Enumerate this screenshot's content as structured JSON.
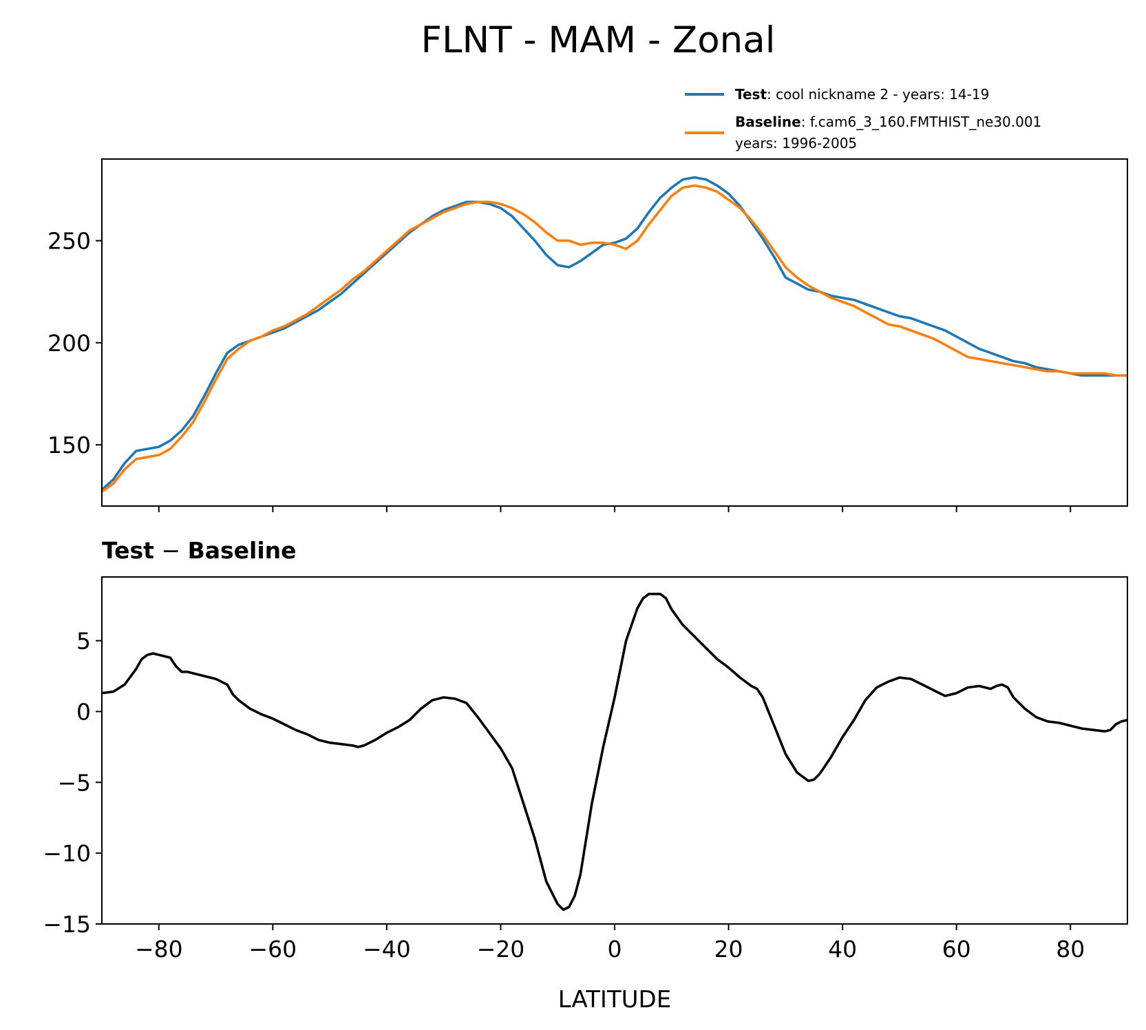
{
  "figure": {
    "title": "FLNT - MAM - Zonal",
    "xlabel": "LATITUDE"
  },
  "legend": {
    "test_label": "Test",
    "test_text": ": cool nickname 2 - years: 14-19",
    "baseline_label": "Baseline",
    "baseline_text": ": f.cam6_3_160.FMTHIST_ne30.001",
    "baseline_years": "years: 1996-2005"
  },
  "diff_title": {
    "left": "Test",
    "sep": " − ",
    "right": "Baseline"
  },
  "colors": {
    "test": "#1f77b4",
    "baseline": "#ff7f0e",
    "diff": "#000000"
  },
  "chart_data": [
    {
      "type": "line",
      "panel": "top",
      "xlim": [
        -90,
        90
      ],
      "ylim": [
        120,
        290
      ],
      "yticks": [
        150,
        200,
        250
      ],
      "ytick_labels": [
        "150",
        "200",
        "250"
      ],
      "xticks": [
        -80,
        -60,
        -40,
        -20,
        0,
        20,
        40,
        60,
        80
      ],
      "series": [
        {
          "name": "Test",
          "x": [
            -90,
            -88,
            -86,
            -84,
            -82,
            -80,
            -78,
            -76,
            -74,
            -72,
            -70,
            -68,
            -66,
            -64,
            -62,
            -60,
            -58,
            -56,
            -54,
            -52,
            -50,
            -48,
            -46,
            -44,
            -42,
            -40,
            -38,
            -36,
            -34,
            -32,
            -30,
            -28,
            -26,
            -24,
            -22,
            -20,
            -18,
            -16,
            -14,
            -12,
            -10,
            -8,
            -6,
            -4,
            -2,
            0,
            2,
            4,
            6,
            8,
            10,
            12,
            14,
            16,
            18,
            20,
            22,
            24,
            26,
            28,
            30,
            32,
            34,
            36,
            38,
            40,
            42,
            44,
            46,
            48,
            50,
            52,
            54,
            56,
            58,
            60,
            62,
            64,
            66,
            68,
            70,
            72,
            74,
            76,
            78,
            80,
            82,
            84,
            86,
            88,
            90
          ],
          "values": [
            128,
            133,
            141,
            147,
            148,
            149,
            152,
            157,
            164,
            174,
            185,
            195,
            199,
            201,
            203,
            205,
            207,
            210,
            213,
            216,
            220,
            224,
            229,
            234,
            239,
            244,
            249,
            254,
            258,
            262,
            265,
            267,
            269,
            269,
            268,
            266,
            262,
            256,
            250,
            243,
            238,
            237,
            240,
            244,
            248,
            249,
            251,
            256,
            264,
            271,
            276,
            280,
            281,
            280,
            277,
            273,
            267,
            259,
            251,
            242,
            232,
            229,
            226,
            225,
            223,
            222,
            221,
            219,
            217,
            215,
            213,
            212,
            210,
            208,
            206,
            203,
            200,
            197,
            195,
            193,
            191,
            190,
            188,
            187,
            186,
            185,
            184,
            184,
            184,
            184,
            184
          ]
        },
        {
          "name": "Baseline",
          "x": [
            -90,
            -88,
            -86,
            -84,
            -82,
            -80,
            -78,
            -76,
            -74,
            -72,
            -70,
            -68,
            -66,
            -64,
            -62,
            -60,
            -58,
            -56,
            -54,
            -52,
            -50,
            -48,
            -46,
            -44,
            -42,
            -40,
            -38,
            -36,
            -34,
            -32,
            -30,
            -28,
            -26,
            -24,
            -22,
            -20,
            -18,
            -16,
            -14,
            -12,
            -10,
            -8,
            -6,
            -4,
            -2,
            0,
            2,
            4,
            6,
            8,
            10,
            12,
            14,
            16,
            18,
            20,
            22,
            24,
            26,
            28,
            30,
            32,
            34,
            36,
            38,
            40,
            42,
            44,
            46,
            48,
            50,
            52,
            54,
            56,
            58,
            60,
            62,
            64,
            66,
            68,
            70,
            72,
            74,
            76,
            78,
            80,
            82,
            84,
            86,
            88,
            90
          ],
          "values": [
            127,
            131,
            138,
            143,
            144,
            145,
            148,
            154,
            161,
            171,
            182,
            192,
            197,
            201,
            203,
            206,
            208,
            211,
            214,
            218,
            222,
            226,
            231,
            235,
            240,
            245,
            250,
            255,
            258,
            261,
            264,
            266,
            268,
            269,
            269,
            268,
            266,
            263,
            259,
            254,
            250,
            250,
            248,
            249,
            249,
            248,
            246,
            250,
            258,
            265,
            272,
            276,
            277,
            276,
            274,
            270,
            266,
            260,
            253,
            245,
            237,
            232,
            228,
            225,
            222,
            220,
            218,
            215,
            212,
            209,
            208,
            206,
            204,
            202,
            199,
            196,
            193,
            192,
            191,
            190,
            189,
            188,
            187,
            186,
            186,
            185,
            185,
            185,
            185,
            184,
            184
          ]
        }
      ]
    },
    {
      "type": "line",
      "panel": "bottom",
      "title": "Test − Baseline",
      "xlabel": "LATITUDE",
      "xlim": [
        -90,
        90
      ],
      "ylim": [
        -15,
        9.5
      ],
      "yticks": [
        -15,
        -10,
        -5,
        0,
        5
      ],
      "ytick_labels": [
        "−15",
        "−10",
        "−5",
        "0",
        "5"
      ],
      "xticks": [
        -80,
        -60,
        -40,
        -20,
        0,
        20,
        40,
        60,
        80
      ],
      "xtick_labels": [
        "−80",
        "−60",
        "−40",
        "−20",
        "0",
        "20",
        "40",
        "60",
        "80"
      ],
      "series": [
        {
          "name": "Test − Baseline",
          "x": [
            -90,
            -88,
            -86,
            -84,
            -83,
            -82,
            -81,
            -80,
            -78,
            -77,
            -76,
            -75,
            -74,
            -73,
            -72,
            -70,
            -68,
            -67,
            -66,
            -64,
            -62,
            -60,
            -58,
            -56,
            -54,
            -52,
            -50,
            -48,
            -46,
            -45,
            -44,
            -42,
            -40,
            -38,
            -36,
            -34,
            -32,
            -30,
            -28,
            -26,
            -24,
            -22,
            -20,
            -18,
            -16,
            -14,
            -12,
            -10,
            -9,
            -8,
            -7,
            -6,
            -5,
            -4,
            -2,
            0,
            2,
            4,
            5,
            6,
            7,
            8,
            9,
            10,
            12,
            14,
            16,
            18,
            20,
            22,
            24,
            25,
            26,
            27,
            28,
            30,
            32,
            34,
            35,
            36,
            37,
            38,
            40,
            42,
            44,
            46,
            48,
            50,
            52,
            53,
            54,
            56,
            58,
            60,
            61,
            62,
            64,
            66,
            67,
            68,
            69,
            70,
            72,
            74,
            76,
            78,
            80,
            82,
            84,
            86,
            87,
            88,
            89,
            90
          ],
          "values": [
            1.3,
            1.4,
            1.9,
            3.0,
            3.7,
            4.0,
            4.1,
            4.0,
            3.8,
            3.2,
            2.8,
            2.8,
            2.7,
            2.6,
            2.5,
            2.3,
            1.9,
            1.2,
            0.8,
            0.2,
            -0.2,
            -0.5,
            -0.9,
            -1.3,
            -1.6,
            -2.0,
            -2.2,
            -2.3,
            -2.4,
            -2.5,
            -2.4,
            -2.0,
            -1.5,
            -1.1,
            -0.6,
            0.2,
            0.8,
            1.0,
            0.9,
            0.6,
            -0.4,
            -1.5,
            -2.6,
            -4.0,
            -6.5,
            -9.0,
            -12.0,
            -13.6,
            -14.0,
            -13.8,
            -13.0,
            -11.5,
            -9.0,
            -6.5,
            -2.5,
            1.0,
            5.0,
            7.3,
            8.0,
            8.3,
            8.3,
            8.3,
            8.0,
            7.2,
            6.1,
            5.3,
            4.5,
            3.7,
            3.1,
            2.4,
            1.8,
            1.6,
            1.0,
            0.0,
            -1.0,
            -3.0,
            -4.3,
            -4.9,
            -4.8,
            -4.4,
            -3.8,
            -3.2,
            -1.8,
            -0.6,
            0.8,
            1.7,
            2.1,
            2.4,
            2.3,
            2.1,
            1.9,
            1.5,
            1.1,
            1.3,
            1.5,
            1.7,
            1.8,
            1.6,
            1.8,
            1.9,
            1.7,
            1.0,
            0.2,
            -0.4,
            -0.7,
            -0.8,
            -1.0,
            -1.2,
            -1.3,
            -1.4,
            -1.3,
            -0.9,
            -0.7,
            -0.6
          ]
        }
      ]
    }
  ]
}
